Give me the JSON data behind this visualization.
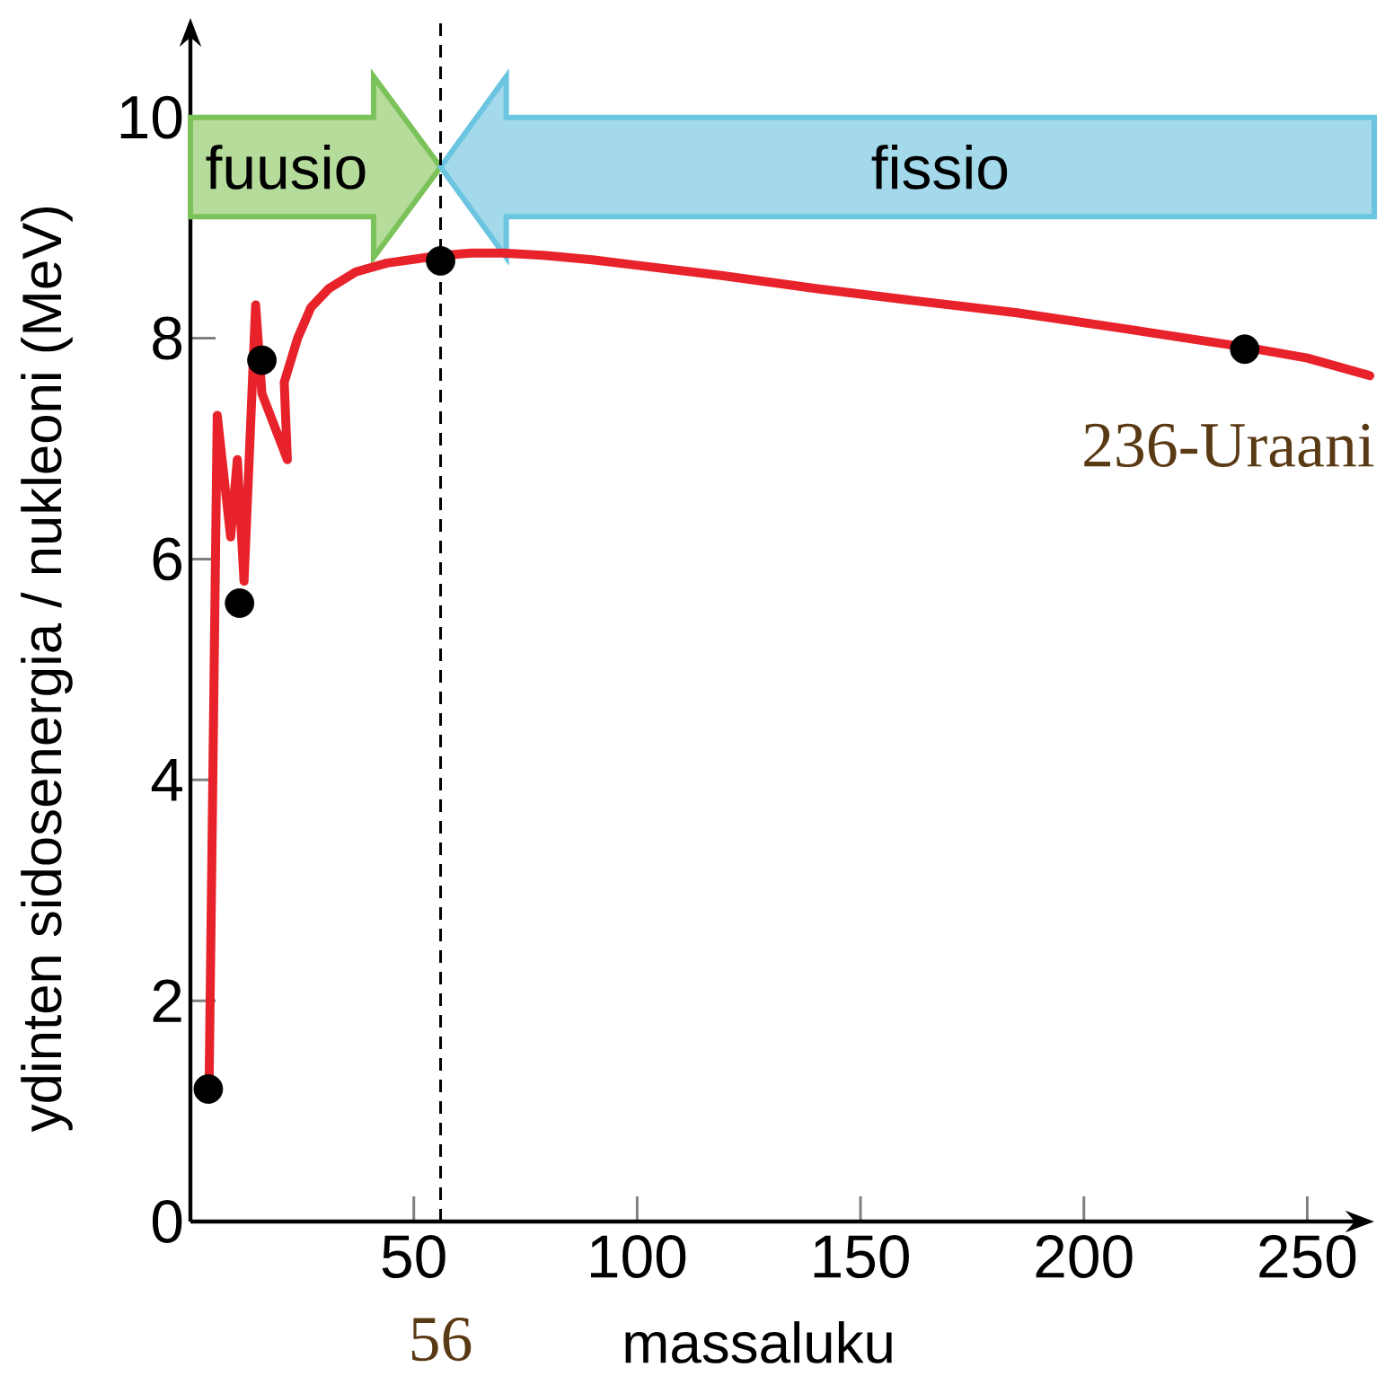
{
  "chart_data": {
    "type": "line",
    "xlabel": "massaluku",
    "ylabel": "ydinten sidosenergia / nukleoni (MeV)",
    "xlim": [
      0,
      265
    ],
    "ylim": [
      0,
      10.9
    ],
    "xticks": [
      50,
      100,
      150,
      200,
      250
    ],
    "yticks": [
      0,
      2,
      4,
      6,
      8,
      10
    ],
    "series": [
      {
        "color": "#e8222a",
        "x": [
          4.2,
          6,
          9,
          10.5,
          12,
          14.6,
          16,
          21.7,
          21,
          24,
          27,
          31,
          37,
          44,
          51,
          56,
          63,
          70,
          79,
          90,
          100,
          118.5,
          140,
          160,
          185,
          210,
          236,
          250,
          264
        ],
        "values": [
          1.3,
          7.3,
          6.2,
          6.9,
          5.8,
          8.3,
          7.5,
          6.9,
          7.6,
          8.0,
          8.28,
          8.45,
          8.6,
          8.68,
          8.72,
          8.75,
          8.77,
          8.77,
          8.75,
          8.71,
          8.66,
          8.57,
          8.45,
          8.35,
          8.23,
          8.08,
          7.92,
          7.82,
          7.66
        ]
      },
      {
        "type": "scatter",
        "color": "#000000",
        "x": [
          4,
          11,
          16,
          56,
          236
        ],
        "values": [
          1.2,
          5.6,
          7.8,
          8.7,
          7.9
        ]
      }
    ],
    "ref_lines": [
      {
        "axis": "x",
        "value": 56,
        "label": "56",
        "color": "#000000",
        "line_style": "dashed"
      }
    ],
    "annotations": [
      "fuusio",
      "fissio",
      {
        "text": "236-Uraani",
        "x": 236,
        "y": 7.9
      }
    ],
    "grid": false
  }
}
